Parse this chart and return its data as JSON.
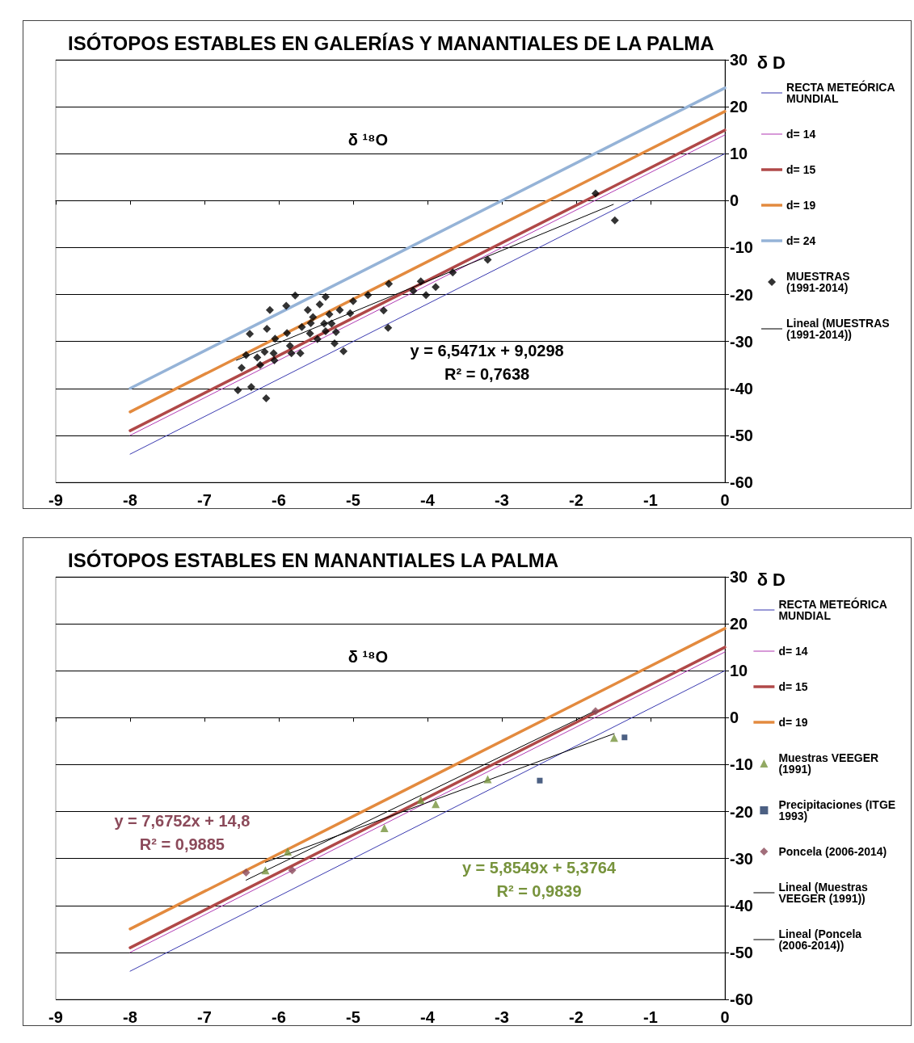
{
  "chart_data": [
    {
      "type": "scatter",
      "title": "ISÓTOPOS ESTABLES EN GALERÍAS Y MANANTIALES DE LA PALMA",
      "xlabel": "δ ¹⁸O",
      "ylabel": "δ D",
      "xlim": [
        -9,
        0
      ],
      "xticks": [
        -9,
        -8,
        -7,
        -6,
        -5,
        -4,
        -3,
        -2,
        -1,
        0
      ],
      "ylim": [
        -60,
        30
      ],
      "yticks": [
        -60,
        -50,
        -40,
        -30,
        -20,
        -10,
        0,
        10,
        20,
        30
      ],
      "grid": "y",
      "legend": "right",
      "annotations": [
        "y = 6,5471x + 9,0298",
        "R² = 0,7638"
      ],
      "series": [
        {
          "name": "RECTA METEÓRICA MUNDIAL",
          "type": "line",
          "color": "#3a3ab0",
          "marker": "none",
          "x": [
            -8,
            0
          ],
          "values": [
            -54,
            10
          ]
        },
        {
          "name": "d= 14",
          "type": "line",
          "color": "#b23cb4",
          "marker": "none",
          "x": [
            -8,
            0
          ],
          "values": [
            -50,
            14
          ]
        },
        {
          "name": "d= 15",
          "type": "line",
          "color": "#b04848",
          "marker": "none",
          "x": [
            -8,
            0
          ],
          "values": [
            -49,
            15
          ]
        },
        {
          "name": "d= 19",
          "type": "line",
          "color": "#e38a3e",
          "marker": "none",
          "x": [
            -8,
            0
          ],
          "values": [
            -45,
            19
          ]
        },
        {
          "name": "d= 24",
          "type": "line",
          "color": "#95b3d7",
          "marker": "none",
          "x": [
            -8,
            0
          ],
          "values": [
            -40,
            24
          ]
        },
        {
          "name": "MUESTRAS (1991-2014)",
          "type": "scatter",
          "color": "#000000",
          "marker": "diamond",
          "x": [
            -5.78,
            -5.37,
            -4.52,
            -6.12,
            -5.9,
            -5.45,
            -5.61,
            -5.0,
            -4.8,
            -5.18,
            -5.04,
            -5.32,
            -5.54,
            -5.57,
            -5.39,
            -5.29,
            -5.69,
            -6.39,
            -6.16,
            -5.89,
            -5.58,
            -5.37,
            -5.23,
            -6.05,
            -5.48,
            -5.85,
            -5.25,
            -6.44,
            -6.19,
            -6.07,
            -5.83,
            -5.71,
            -5.13,
            -6.29,
            -6.06,
            -6.25,
            -6.5,
            -4.59,
            -4.53,
            -6.55,
            -6.37,
            -6.17,
            -4.19,
            -4.09,
            -4.02,
            -3.89,
            -3.66,
            -3.19,
            -1.74,
            -1.48
          ],
          "values": [
            -20.2,
            -20.5,
            -17.7,
            -23.3,
            -22.4,
            -22.1,
            -23.3,
            -21.4,
            -20.1,
            -23.3,
            -24.0,
            -24.2,
            -24.8,
            -26.1,
            -26.2,
            -26.2,
            -26.9,
            -28.4,
            -27.3,
            -28.2,
            -28.3,
            -27.8,
            -28.0,
            -29.4,
            -29.5,
            -30.9,
            -30.4,
            -32.9,
            -32.2,
            -32.5,
            -32.5,
            -32.5,
            -32.1,
            -33.4,
            -34.0,
            -35.0,
            -35.6,
            -23.4,
            -27.1,
            -40.4,
            -39.7,
            -42.1,
            -19.2,
            -17.2,
            -20.1,
            -18.4,
            -15.3,
            -12.6,
            1.5,
            -4.2
          ]
        },
        {
          "name": "Lineal (MUESTRAS (1991-2014))",
          "type": "line",
          "color": "#000000",
          "marker": "none",
          "x": [
            -6.57,
            -1.5
          ],
          "values": [
            -34.0,
            -0.8
          ]
        }
      ]
    },
    {
      "type": "scatter",
      "title": "ISÓTOPOS ESTABLES EN MANANTIALES LA PALMA",
      "xlabel": "δ ¹⁸O",
      "ylabel": "δ D",
      "xlim": [
        -9,
        0
      ],
      "xticks": [
        -9,
        -8,
        -7,
        -6,
        -5,
        -4,
        -3,
        -2,
        -1,
        0
      ],
      "ylim": [
        -60,
        30
      ],
      "yticks": [
        -60,
        -50,
        -40,
        -30,
        -20,
        -10,
        0,
        10,
        20,
        30
      ],
      "grid": "y",
      "legend": "right",
      "annotations": [
        "y = 7,6752x + 14,8",
        "R² = 0,9885",
        "y = 5,8549x + 5,3764",
        "R² = 0,9839"
      ],
      "series": [
        {
          "name": "RECTA METEÓRICA MUNDIAL",
          "type": "line",
          "color": "#3a3ab0",
          "marker": "none",
          "x": [
            -8,
            0
          ],
          "values": [
            -54,
            10
          ]
        },
        {
          "name": "d= 14",
          "type": "line",
          "color": "#b23cb4",
          "marker": "none",
          "x": [
            -8,
            0
          ],
          "values": [
            -50,
            14
          ]
        },
        {
          "name": "d= 15",
          "type": "line",
          "color": "#b04848",
          "marker": "none",
          "x": [
            -8,
            0
          ],
          "values": [
            -49,
            15
          ]
        },
        {
          "name": "d= 19",
          "type": "line",
          "color": "#e38a3e",
          "marker": "none",
          "x": [
            -8,
            0
          ],
          "values": [
            -45,
            19
          ]
        },
        {
          "name": "Muestras VEEGER (1991)",
          "type": "scatter",
          "color": "#77933c",
          "marker": "triangle",
          "x": [
            -6.18,
            -5.88,
            -4.58,
            -4.09,
            -3.89,
            -3.19,
            -1.49
          ],
          "values": [
            -32.5,
            -28.5,
            -23.5,
            -17.5,
            -18.4,
            -13.1,
            -4.3
          ]
        },
        {
          "name": "Precipitaciones (ITGE 1993)",
          "type": "scatter",
          "color": "#1f3864",
          "marker": "square",
          "x": [
            -2.49,
            -1.35
          ],
          "values": [
            -13.4,
            -4.2
          ]
        },
        {
          "name": "Poncela (2006-2014)",
          "type": "scatter",
          "color": "#8b4a5a",
          "marker": "diamond",
          "x": [
            -6.44,
            -5.82,
            -1.74
          ],
          "values": [
            -33.0,
            -32.5,
            1.4
          ]
        },
        {
          "name": "Lineal (Muestras VEEGER (1991))",
          "type": "line",
          "color": "#000000",
          "marker": "none",
          "x": [
            -6.18,
            -1.49
          ],
          "values": [
            -30.8,
            -3.4
          ]
        },
        {
          "name": "Lineal (Poncela (2006-2014))",
          "type": "line",
          "color": "#000000",
          "marker": "none",
          "x": [
            -6.44,
            -1.74
          ],
          "values": [
            -34.6,
            1.5
          ]
        }
      ]
    }
  ]
}
